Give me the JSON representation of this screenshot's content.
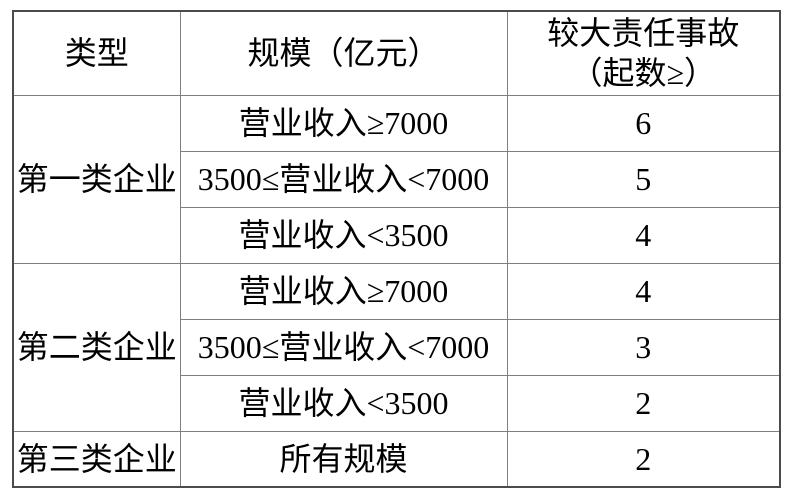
{
  "table": {
    "header": {
      "type": "类型",
      "scale": "规模（亿元）",
      "accidents_line1": "较大责任事故",
      "accidents_line2": "（起数≥）"
    },
    "groups": [
      {
        "type": "第一类企业",
        "rows": [
          {
            "scale": "营业收入≥7000",
            "accidents": "6"
          },
          {
            "scale": "3500≤营业收入<7000",
            "accidents": "5"
          },
          {
            "scale": "营业收入<3500",
            "accidents": "4"
          }
        ]
      },
      {
        "type": "第二类企业",
        "rows": [
          {
            "scale": "营业收入≥7000",
            "accidents": "4"
          },
          {
            "scale": "3500≤营业收入<7000",
            "accidents": "3"
          },
          {
            "scale": "营业收入<3500",
            "accidents": "2"
          }
        ]
      },
      {
        "type": "第三类企业",
        "rows": [
          {
            "scale": "所有规模",
            "accidents": "2"
          }
        ]
      }
    ],
    "colors": {
      "outer_border": "#4c4c4c",
      "inner_border": "#7f7f7f",
      "text": "#000000",
      "background": "#ffffff"
    }
  }
}
